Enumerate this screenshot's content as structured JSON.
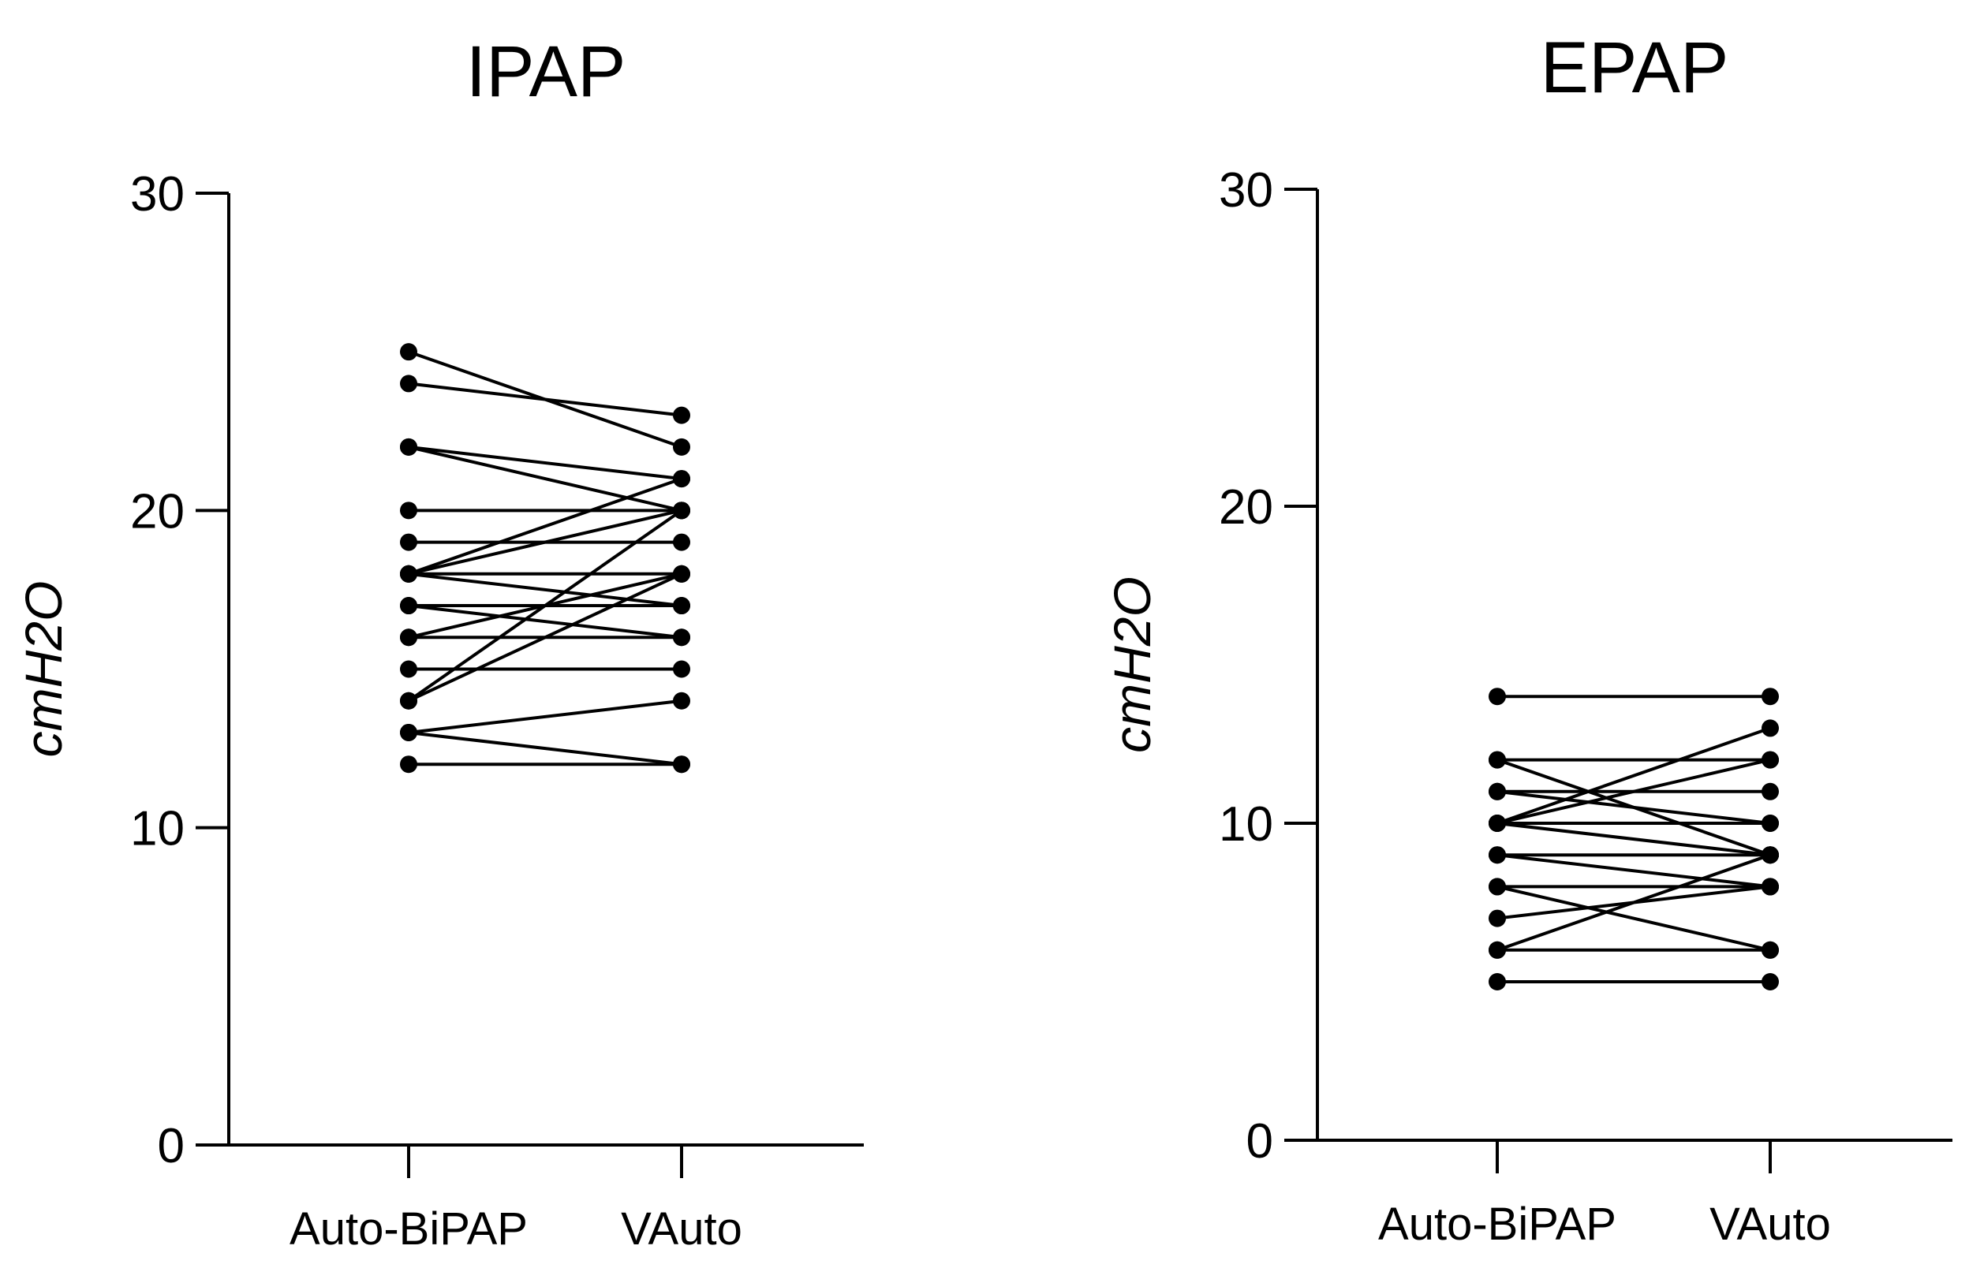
{
  "chart_data": [
    {
      "type": "line",
      "title": "IPAP",
      "ylabel": "cmH2O",
      "xlabel": "",
      "categories": [
        "Auto-BiPAP",
        "VAuto"
      ],
      "ylim": [
        0,
        30
      ],
      "yticks": [
        0,
        10,
        20,
        30
      ],
      "grid": false,
      "pairs": [
        [
          25,
          22
        ],
        [
          24,
          23
        ],
        [
          22,
          21
        ],
        [
          22,
          20
        ],
        [
          20,
          20
        ],
        [
          19,
          19
        ],
        [
          18,
          21
        ],
        [
          18,
          20
        ],
        [
          18,
          18
        ],
        [
          18,
          17
        ],
        [
          17,
          17
        ],
        [
          17,
          16
        ],
        [
          16,
          16
        ],
        [
          16,
          18
        ],
        [
          15,
          15
        ],
        [
          14,
          20
        ],
        [
          14,
          18
        ],
        [
          13,
          14
        ],
        [
          13,
          12
        ],
        [
          12,
          12
        ]
      ]
    },
    {
      "type": "line",
      "title": "EPAP",
      "ylabel": "cmH2O",
      "xlabel": "",
      "categories": [
        "Auto-BiPAP",
        "VAuto"
      ],
      "ylim": [
        0,
        30
      ],
      "yticks": [
        0,
        10,
        20,
        30
      ],
      "grid": false,
      "pairs": [
        [
          14,
          14
        ],
        [
          12,
          12
        ],
        [
          12,
          9
        ],
        [
          11,
          11
        ],
        [
          11,
          10
        ],
        [
          10,
          13
        ],
        [
          10,
          12
        ],
        [
          10,
          10
        ],
        [
          10,
          9
        ],
        [
          9,
          9
        ],
        [
          9,
          8
        ],
        [
          8,
          8
        ],
        [
          8,
          6
        ],
        [
          7,
          8
        ],
        [
          6,
          9
        ],
        [
          6,
          6
        ],
        [
          5,
          5
        ]
      ]
    }
  ]
}
